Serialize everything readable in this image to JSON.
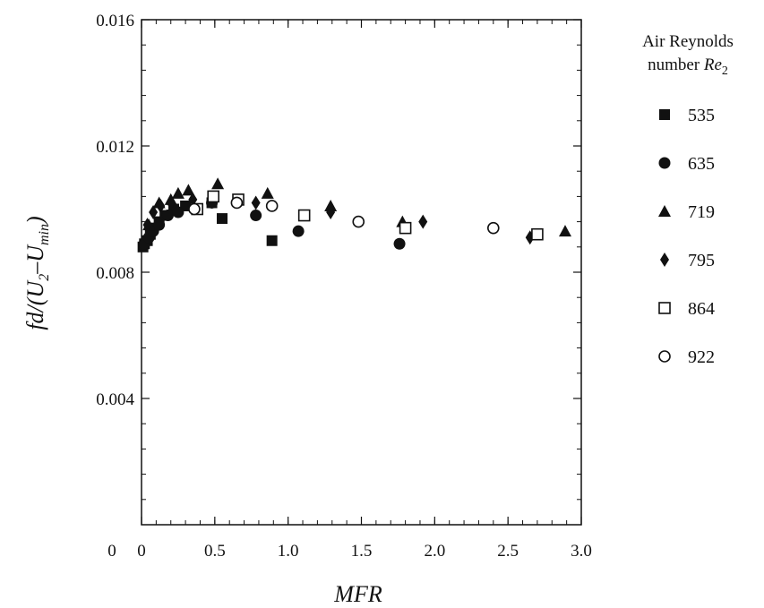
{
  "chart_data": {
    "type": "scatter",
    "xlabel": "MFR",
    "ylabel_parts": {
      "a": "fd/(U",
      "sub2": "2",
      "b": "–U",
      "submin": "min",
      "c": ")"
    },
    "xlim": [
      0,
      3.0
    ],
    "ylim": [
      0,
      0.016
    ],
    "x_ticks": [
      0,
      0.5,
      1.0,
      1.5,
      2.0,
      2.5,
      3.0
    ],
    "x_tick_labels": [
      "0",
      "0.5",
      "1.0",
      "1.5",
      "2.0",
      "2.5",
      "3.0"
    ],
    "y_ticks": [
      0.004,
      0.008,
      0.012,
      0.016
    ],
    "y_tick_labels": [
      "0.004",
      "0.008",
      "0.012",
      "0.016"
    ],
    "grid": false,
    "legend": {
      "placement": "right",
      "title_line1": "Air Reynolds",
      "title_line2": "number ",
      "title_re": "Re",
      "title_sub": "2"
    },
    "series": [
      {
        "name": "535",
        "marker": "filled-square",
        "points": [
          [
            0.01,
            0.0088
          ],
          [
            0.02,
            0.0089
          ],
          [
            0.04,
            0.009
          ],
          [
            0.06,
            0.0092
          ],
          [
            0.08,
            0.0094
          ],
          [
            0.12,
            0.0096
          ],
          [
            0.16,
            0.0098
          ],
          [
            0.22,
            0.01
          ],
          [
            0.3,
            0.0101
          ],
          [
            0.48,
            0.0102
          ],
          [
            0.55,
            0.0097
          ],
          [
            0.89,
            0.009
          ]
        ]
      },
      {
        "name": "635",
        "marker": "filled-circle",
        "points": [
          [
            0.02,
            0.0089
          ],
          [
            0.05,
            0.0091
          ],
          [
            0.08,
            0.0093
          ],
          [
            0.12,
            0.0095
          ],
          [
            0.18,
            0.0098
          ],
          [
            0.25,
            0.0099
          ],
          [
            0.48,
            0.0102
          ],
          [
            0.78,
            0.0098
          ],
          [
            1.07,
            0.0093
          ],
          [
            1.76,
            0.0089
          ]
        ]
      },
      {
        "name": "719",
        "marker": "filled-triangle",
        "points": [
          [
            0.05,
            0.0095
          ],
          [
            0.12,
            0.0102
          ],
          [
            0.2,
            0.0103
          ],
          [
            0.25,
            0.0105
          ],
          [
            0.32,
            0.0106
          ],
          [
            0.52,
            0.0108
          ],
          [
            0.86,
            0.0105
          ],
          [
            1.29,
            0.0101
          ],
          [
            1.78,
            0.0096
          ],
          [
            2.89,
            0.0093
          ]
        ]
      },
      {
        "name": "795",
        "marker": "filled-diamond",
        "points": [
          [
            0.04,
            0.0095
          ],
          [
            0.08,
            0.0099
          ],
          [
            0.13,
            0.0101
          ],
          [
            0.2,
            0.0102
          ],
          [
            0.35,
            0.0103
          ],
          [
            0.78,
            0.0102
          ],
          [
            1.29,
            0.0099
          ],
          [
            1.92,
            0.0096
          ],
          [
            2.65,
            0.0091
          ]
        ]
      },
      {
        "name": "864",
        "marker": "open-square",
        "points": [
          [
            0.38,
            0.01
          ],
          [
            0.49,
            0.0104
          ],
          [
            0.66,
            0.0103
          ],
          [
            1.11,
            0.0098
          ],
          [
            1.8,
            0.0094
          ],
          [
            2.7,
            0.0092
          ]
        ]
      },
      {
        "name": "922",
        "marker": "open-circle",
        "points": [
          [
            0.36,
            0.01
          ],
          [
            0.65,
            0.0102
          ],
          [
            0.89,
            0.0101
          ],
          [
            1.48,
            0.0096
          ],
          [
            2.4,
            0.0094
          ]
        ]
      }
    ]
  }
}
